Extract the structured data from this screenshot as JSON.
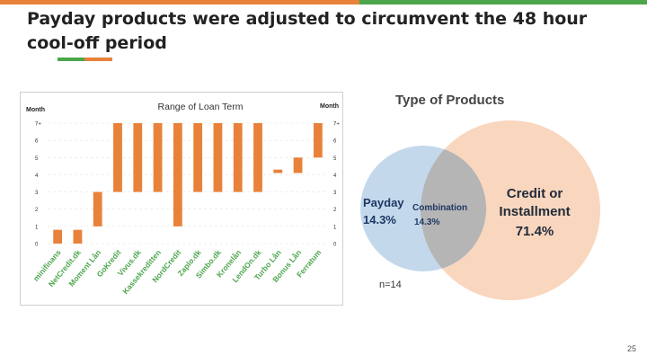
{
  "slide": {
    "title": "Payday products were adjusted to circumvent the 48 hour cool-off period",
    "page_number": "25",
    "colors": {
      "orange": "#E8823A",
      "green": "#4CA64C",
      "blue": "#C4D8EC",
      "peach": "#F9D6BE",
      "overlap": "#B5B5B5"
    }
  },
  "chart_data": [
    {
      "type": "bar",
      "title": "Range of Loan Term",
      "ylabel": "Month",
      "ylabel_right": "Month",
      "y_ticks": [
        "0",
        "1",
        "2",
        "3",
        "4",
        "5",
        "6",
        "7+"
      ],
      "ylim": [
        0,
        7
      ],
      "categories": [
        "minifinans",
        "NetCredit.dk",
        "Moment Lån",
        "GoKredit",
        "Vivus.dk",
        "Kassekreditten",
        "NordCredit",
        "Zaplo.dk",
        "Simbo.dk",
        "Kronelån",
        "LendOn.dk",
        "Turbo Lån",
        "Bonus Lån",
        "Ferratum"
      ],
      "range": [
        [
          0,
          0.8
        ],
        [
          0,
          0.8
        ],
        [
          1,
          3
        ],
        [
          3,
          7
        ],
        [
          3,
          7
        ],
        [
          3,
          7
        ],
        [
          1,
          7
        ],
        [
          3,
          7
        ],
        [
          3,
          7
        ],
        [
          3,
          7
        ],
        [
          3,
          7
        ],
        [
          4.1,
          4.3
        ],
        [
          4.1,
          5
        ],
        [
          5,
          7
        ]
      ],
      "grid": false,
      "bar_color": "#E8823A",
      "label_color": "#4CA64C"
    },
    {
      "type": "venn",
      "title": "Type of Products",
      "sets": [
        {
          "label": "Payday",
          "value": "14.3%",
          "color": "#C4D8EC"
        },
        {
          "label": "Credit or Installment",
          "value": "71.4%",
          "color": "#F9D6BE"
        }
      ],
      "intersection": {
        "label": "Combination",
        "value": "14.3%"
      },
      "note": "n=14"
    }
  ]
}
